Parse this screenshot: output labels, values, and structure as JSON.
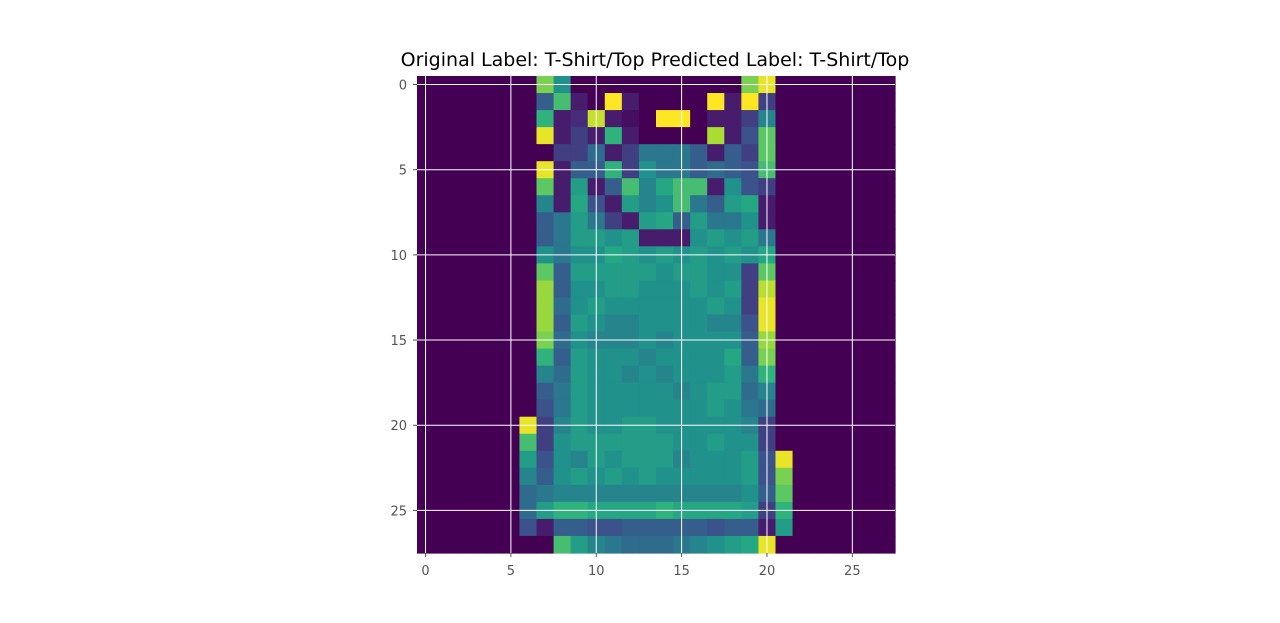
{
  "chart_data": {
    "type": "heatmap",
    "title": "Original Label: T-Shirt/Top  Predicted Label: T-Shirt/Top",
    "xlabel": "",
    "ylabel": "",
    "colormap": "viridis",
    "grid": true,
    "x_ticks": [
      "0",
      "5",
      "10",
      "15",
      "20",
      "25"
    ],
    "y_ticks": [
      "0",
      "5",
      "10",
      "15",
      "20",
      "25"
    ],
    "xlim": [
      -0.5,
      27.5
    ],
    "ylim": [
      27.5,
      -0.5
    ],
    "vmin": 0,
    "vmax": 1,
    "rows": [
      [
        0,
        0,
        0,
        0,
        0,
        0,
        0,
        0.8,
        0.5,
        0,
        0,
        0,
        0,
        0,
        0,
        0,
        0,
        0,
        0,
        0.8,
        0.97,
        0,
        0,
        0,
        0,
        0,
        0,
        0
      ],
      [
        0,
        0,
        0,
        0,
        0,
        0,
        0,
        0.3,
        0.7,
        0.1,
        0,
        1.0,
        0.1,
        0,
        0,
        0,
        0,
        1.0,
        0.1,
        1.0,
        0.2,
        0,
        0,
        0,
        0,
        0,
        0,
        0
      ],
      [
        0,
        0,
        0,
        0,
        0,
        0,
        0,
        0.65,
        0.1,
        0.15,
        0.92,
        0.1,
        0.05,
        0,
        1.0,
        1.0,
        0,
        0.1,
        0.1,
        0.2,
        0.45,
        0,
        0,
        0,
        0,
        0,
        0,
        0
      ],
      [
        0,
        0,
        0,
        0,
        0,
        0,
        0,
        0.97,
        0.1,
        0.2,
        0.1,
        0.65,
        0.1,
        0,
        0,
        0,
        0,
        0.88,
        0.1,
        0.25,
        0.75,
        0,
        0,
        0,
        0,
        0,
        0,
        0
      ],
      [
        0,
        0,
        0,
        0,
        0,
        0,
        0,
        0,
        0.2,
        0.2,
        0.35,
        0.1,
        0.2,
        0.4,
        0.4,
        0.4,
        0.3,
        0.1,
        0.3,
        0.2,
        0.75,
        0,
        0,
        0,
        0,
        0,
        0,
        0
      ],
      [
        0,
        0,
        0,
        0,
        0,
        0,
        0,
        0.97,
        0.1,
        0.3,
        0.3,
        0.65,
        0.2,
        0.5,
        0.4,
        0.4,
        0.3,
        0.35,
        0.3,
        0.25,
        0.7,
        0,
        0,
        0,
        0,
        0,
        0,
        0
      ],
      [
        0,
        0,
        0,
        0,
        0,
        0,
        0,
        0.75,
        0.1,
        0.55,
        0.1,
        0.3,
        0.7,
        0.45,
        0.6,
        0.7,
        0.7,
        0.1,
        0.5,
        0.25,
        0.2,
        0,
        0,
        0,
        0,
        0,
        0,
        0
      ],
      [
        0,
        0,
        0,
        0,
        0,
        0,
        0,
        0.45,
        0.1,
        0.6,
        0.25,
        0.1,
        0.55,
        0.45,
        0.5,
        0.7,
        0.4,
        0.3,
        0.55,
        0.6,
        0.1,
        0,
        0,
        0,
        0,
        0,
        0,
        0
      ],
      [
        0,
        0,
        0,
        0,
        0,
        0,
        0,
        0.3,
        0.4,
        0.55,
        0.4,
        0.2,
        0.1,
        0.55,
        0.6,
        0.3,
        0.55,
        0.4,
        0.4,
        0.5,
        0.1,
        0,
        0,
        0,
        0,
        0,
        0,
        0
      ],
      [
        0,
        0,
        0,
        0,
        0,
        0,
        0,
        0.3,
        0.4,
        0.55,
        0.55,
        0.5,
        0.55,
        0.1,
        0.1,
        0.1,
        0.5,
        0.55,
        0.5,
        0.55,
        0.4,
        0,
        0,
        0,
        0,
        0,
        0,
        0
      ],
      [
        0,
        0,
        0,
        0,
        0,
        0,
        0,
        0.5,
        0.4,
        0.5,
        0.5,
        0.6,
        0.55,
        0.5,
        0.55,
        0.5,
        0.55,
        0.5,
        0.55,
        0.5,
        0.6,
        0,
        0,
        0,
        0,
        0,
        0,
        0
      ],
      [
        0,
        0,
        0,
        0,
        0,
        0,
        0,
        0.75,
        0.3,
        0.55,
        0.55,
        0.55,
        0.55,
        0.55,
        0.5,
        0.55,
        0.55,
        0.5,
        0.5,
        0.2,
        0.75,
        0,
        0,
        0,
        0,
        0,
        0,
        0
      ],
      [
        0,
        0,
        0,
        0,
        0,
        0,
        0,
        0.85,
        0.3,
        0.5,
        0.5,
        0.55,
        0.55,
        0.5,
        0.5,
        0.5,
        0.55,
        0.5,
        0.55,
        0.2,
        0.9,
        0,
        0,
        0,
        0,
        0,
        0,
        0
      ],
      [
        0,
        0,
        0,
        0,
        0,
        0,
        0,
        0.85,
        0.35,
        0.5,
        0.55,
        0.5,
        0.5,
        0.5,
        0.5,
        0.5,
        0.5,
        0.55,
        0.5,
        0.2,
        0.97,
        0,
        0,
        0,
        0,
        0,
        0,
        0
      ],
      [
        0,
        0,
        0,
        0,
        0,
        0,
        0,
        0.85,
        0.3,
        0.55,
        0.5,
        0.45,
        0.45,
        0.5,
        0.5,
        0.5,
        0.5,
        0.45,
        0.45,
        0.25,
        0.97,
        0,
        0,
        0,
        0,
        0,
        0,
        0
      ],
      [
        0,
        0,
        0,
        0,
        0,
        0,
        0,
        0.8,
        0.35,
        0.5,
        0.45,
        0.45,
        0.45,
        0.5,
        0.45,
        0.5,
        0.5,
        0.5,
        0.5,
        0.3,
        0.85,
        0,
        0,
        0,
        0,
        0,
        0,
        0
      ],
      [
        0,
        0,
        0,
        0,
        0,
        0,
        0,
        0.65,
        0.3,
        0.55,
        0.5,
        0.5,
        0.5,
        0.45,
        0.5,
        0.5,
        0.5,
        0.5,
        0.6,
        0.3,
        0.8,
        0,
        0,
        0,
        0,
        0,
        0,
        0
      ],
      [
        0,
        0,
        0,
        0,
        0,
        0,
        0,
        0.45,
        0.35,
        0.55,
        0.5,
        0.5,
        0.45,
        0.5,
        0.45,
        0.5,
        0.5,
        0.5,
        0.55,
        0.4,
        0.65,
        0,
        0,
        0,
        0,
        0,
        0,
        0
      ],
      [
        0,
        0,
        0,
        0,
        0,
        0,
        0,
        0.3,
        0.4,
        0.55,
        0.5,
        0.5,
        0.5,
        0.5,
        0.5,
        0.45,
        0.5,
        0.55,
        0.55,
        0.35,
        0.45,
        0,
        0,
        0,
        0,
        0,
        0,
        0
      ],
      [
        0,
        0,
        0,
        0,
        0,
        0,
        0,
        0.25,
        0.4,
        0.55,
        0.5,
        0.5,
        0.5,
        0.5,
        0.5,
        0.5,
        0.5,
        0.55,
        0.5,
        0.4,
        0.35,
        0,
        0,
        0,
        0,
        0,
        0,
        0
      ],
      [
        0,
        0,
        0,
        0,
        0,
        0,
        0.97,
        0.2,
        0.45,
        0.55,
        0.5,
        0.5,
        0.55,
        0.55,
        0.5,
        0.5,
        0.5,
        0.5,
        0.5,
        0.45,
        0.2,
        0,
        0,
        0,
        0,
        0,
        0,
        0
      ],
      [
        0,
        0,
        0,
        0,
        0,
        0,
        0.7,
        0.2,
        0.5,
        0.55,
        0.55,
        0.55,
        0.55,
        0.55,
        0.55,
        0.5,
        0.5,
        0.55,
        0.5,
        0.5,
        0.2,
        0,
        0,
        0,
        0,
        0,
        0,
        0
      ],
      [
        0,
        0,
        0,
        0,
        0,
        0,
        0.55,
        0.25,
        0.5,
        0.45,
        0.55,
        0.5,
        0.55,
        0.55,
        0.55,
        0.45,
        0.5,
        0.5,
        0.5,
        0.55,
        0.25,
        0.97,
        0,
        0,
        0,
        0,
        0,
        0
      ],
      [
        0,
        0,
        0,
        0,
        0,
        0,
        0.45,
        0.3,
        0.5,
        0.55,
        0.5,
        0.55,
        0.5,
        0.55,
        0.5,
        0.5,
        0.5,
        0.5,
        0.5,
        0.55,
        0.25,
        0.8,
        0,
        0,
        0,
        0,
        0,
        0
      ],
      [
        0,
        0,
        0,
        0,
        0,
        0,
        0.35,
        0.4,
        0.45,
        0.45,
        0.45,
        0.45,
        0.45,
        0.45,
        0.45,
        0.45,
        0.45,
        0.45,
        0.45,
        0.5,
        0.3,
        0.75,
        0,
        0,
        0,
        0,
        0,
        0
      ],
      [
        0,
        0,
        0,
        0,
        0,
        0,
        0.35,
        0.55,
        0.65,
        0.65,
        0.6,
        0.6,
        0.6,
        0.6,
        0.65,
        0.6,
        0.6,
        0.6,
        0.6,
        0.55,
        0.2,
        0.65,
        0,
        0,
        0,
        0,
        0,
        0
      ],
      [
        0,
        0,
        0,
        0,
        0,
        0,
        0.25,
        0.1,
        0.3,
        0.3,
        0.25,
        0.25,
        0.3,
        0.3,
        0.3,
        0.3,
        0.3,
        0.25,
        0.3,
        0.3,
        0.1,
        0.55,
        0,
        0,
        0,
        0,
        0,
        0
      ],
      [
        0,
        0,
        0,
        0,
        0,
        0,
        0,
        0,
        0.7,
        0.55,
        0.45,
        0.4,
        0.35,
        0.35,
        0.35,
        0.4,
        0.45,
        0.5,
        0.55,
        0.6,
        0.97,
        0,
        0,
        0,
        0,
        0,
        0,
        0
      ]
    ]
  }
}
